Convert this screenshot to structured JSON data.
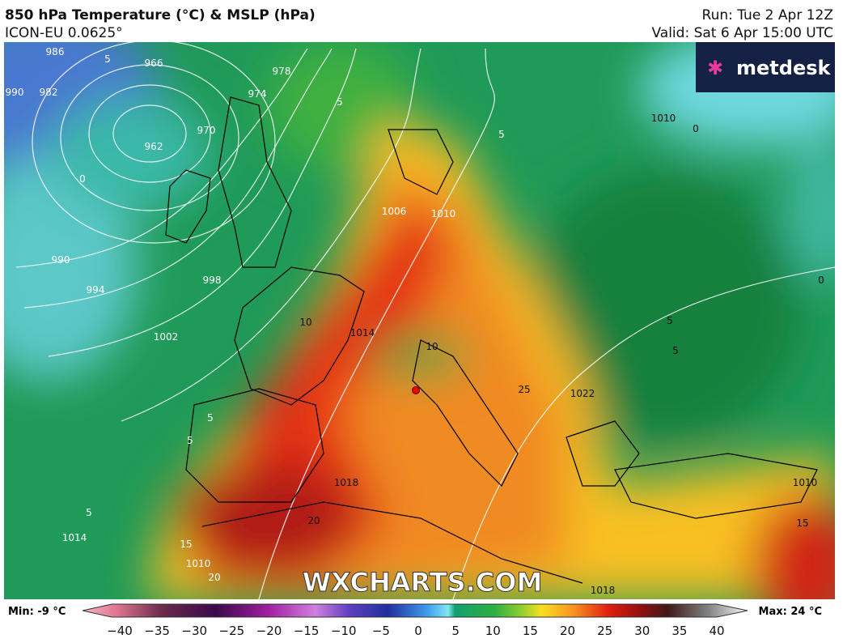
{
  "header": {
    "title": "850 hPa Temperature (°C) & MSLP (hPa)",
    "model": "ICON-EU 0.0625°",
    "run": "Run: Tue 2 Apr 12Z",
    "valid": "Valid: Sat 6 Apr 15:00 UTC"
  },
  "logo": "metdesk",
  "watermark": "WXCHARTS.COM",
  "map_labels": [
    "986",
    "982",
    "990",
    "966",
    "962",
    "970",
    "974",
    "978",
    "0",
    "990",
    "994",
    "998",
    "1002",
    "10",
    "1006",
    "1010",
    "1014",
    "10",
    "5",
    "5",
    "0",
    "1010",
    "5",
    "5",
    "0",
    "5",
    "5",
    "5",
    "1014",
    "15",
    "1010",
    "20",
    "1018",
    "20",
    "1018",
    "15",
    "1010",
    "1022",
    "25",
    "5"
  ],
  "colorbar": {
    "min": "Min: -9 °C",
    "max": "Max: 24 °C",
    "ticks": [
      "−40",
      "−35",
      "−30",
      "−25",
      "−20",
      "−15",
      "−10",
      "−5",
      "0",
      "5",
      "10",
      "15",
      "20",
      "25",
      "30",
      "35",
      "40"
    ]
  }
}
